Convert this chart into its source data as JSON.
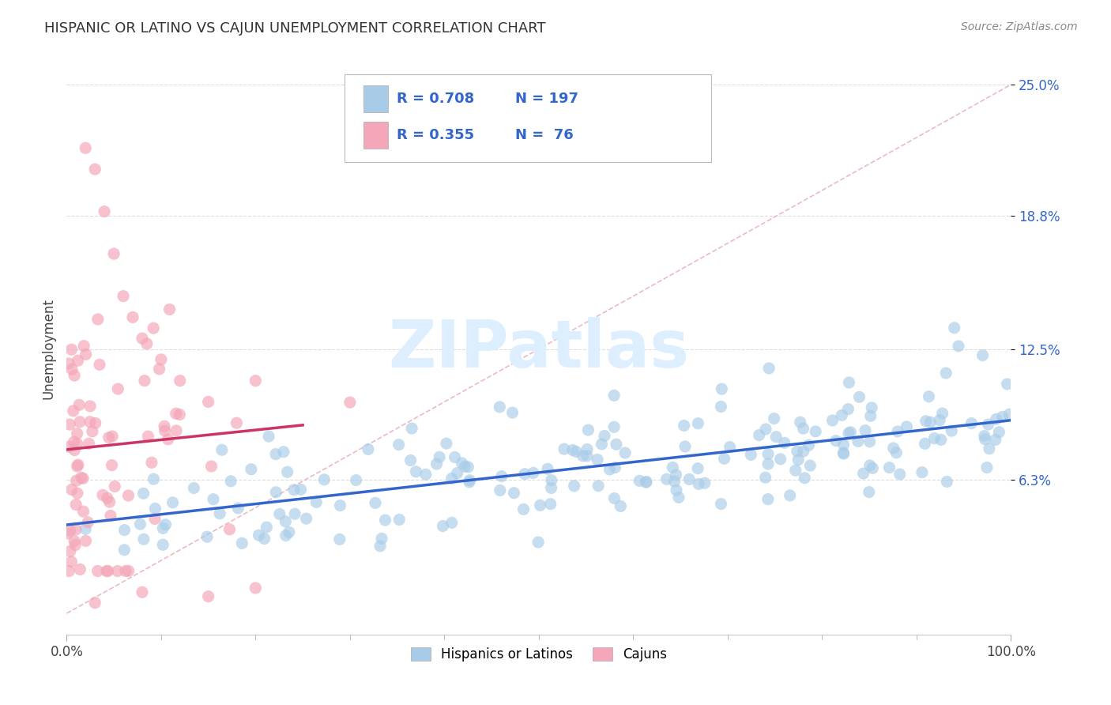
{
  "title": "HISPANIC OR LATINO VS CAJUN UNEMPLOYMENT CORRELATION CHART",
  "source_text": "Source: ZipAtlas.com",
  "ylabel": "Unemployment",
  "xlim": [
    0,
    100
  ],
  "ylim": [
    -1,
    26
  ],
  "yticks": [
    6.3,
    12.5,
    18.8,
    25.0
  ],
  "ytick_labels": [
    "6.3%",
    "12.5%",
    "18.8%",
    "25.0%"
  ],
  "blue_color": "#a8cce8",
  "pink_color": "#f4a7b9",
  "trend_blue": "#3366cc",
  "trend_pink": "#cc3366",
  "diag_color": "#e8b4b8",
  "label_color": "#3366cc",
  "watermark": "ZIPatlas",
  "watermark_color": "#ddeeff",
  "blue_R": 0.708,
  "blue_N": 197,
  "pink_R": 0.355,
  "pink_N": 76,
  "background_color": "#ffffff",
  "grid_color": "#dddddd",
  "legend_r1": "0.708",
  "legend_n1": "197",
  "legend_r2": "0.355",
  "legend_n2": " 76"
}
